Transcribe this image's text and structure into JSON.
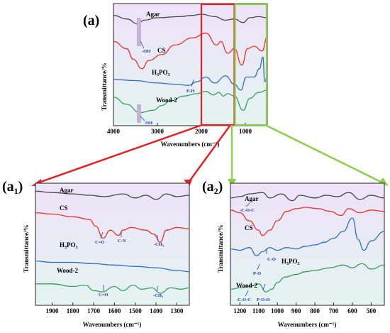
{
  "colors": {
    "agar": "#4a4a4a",
    "cs": "#e8332d",
    "h3po3": "#2e6fc4",
    "wood": "#3aa15a",
    "zoom_red": "#e22226",
    "zoom_green": "#8ccf4a",
    "bg_top": "#efe2f8",
    "bg_bottom": "#e3f4f2",
    "annotation": "#1f3fa8",
    "oh_bar": "#c8b2d8"
  },
  "chart_data": [
    {
      "id": "a",
      "type": "line",
      "panel_label": "(a)",
      "xlabel": "Wavenumbers (cm⁻¹)",
      "ylabel": "Transmittance/%",
      "xlim": [
        4000,
        500
      ],
      "xticks": [
        4000,
        3000,
        2000,
        1000
      ],
      "series": [
        {
          "name": "Agar",
          "label": "Agar",
          "key": "agar",
          "x": [
            4000,
            3700,
            3450,
            3300,
            3000,
            2500,
            2200,
            2000,
            1700,
            1450,
            1250,
            1050,
            900,
            700,
            500
          ],
          "y": [
            9.8,
            9.5,
            9.1,
            9.4,
            9.6,
            9.7,
            9.8,
            9.9,
            9.7,
            9.4,
            9.5,
            9.2,
            9.6,
            9.7,
            9.6
          ]
        },
        {
          "name": "CS",
          "label": "CS",
          "key": "cs",
          "x": [
            4000,
            3700,
            3550,
            3350,
            3200,
            2900,
            2600,
            2200,
            1900,
            1650,
            1560,
            1400,
            1250,
            1080,
            950,
            800,
            620,
            500
          ],
          "y": [
            7.6,
            7.0,
            6.1,
            5.3,
            6.0,
            6.5,
            7.3,
            7.9,
            8.3,
            7.3,
            7.6,
            6.6,
            7.0,
            5.6,
            7.0,
            7.2,
            6.8,
            8.0
          ]
        },
        {
          "name": "H3PO3",
          "label": "H₃PO₃",
          "key": "h3po3",
          "x": [
            4000,
            3500,
            3000,
            2600,
            2300,
            2100,
            1900,
            1700,
            1450,
            1250,
            1100,
            980,
            800,
            680,
            600,
            560,
            500
          ],
          "y": [
            4.4,
            4.3,
            4.1,
            4.0,
            3.9,
            4.2,
            4.6,
            4.1,
            4.7,
            4.0,
            3.5,
            4.6,
            4.6,
            5.3,
            6.3,
            4.2,
            4.7
          ]
        },
        {
          "name": "Wood-2",
          "label": "Wood-2",
          "key": "wood",
          "x": [
            4000,
            3700,
            3400,
            3100,
            2900,
            2700,
            2400,
            2100,
            1900,
            1730,
            1600,
            1500,
            1400,
            1250,
            1050,
            900,
            700,
            500
          ],
          "y": [
            2.9,
            2.3,
            1.6,
            1.8,
            2.2,
            2.6,
            3.0,
            3.2,
            3.4,
            3.1,
            3.3,
            3.0,
            3.2,
            3.0,
            1.8,
            2.8,
            3.3,
            3.5
          ]
        }
      ],
      "annotations": [
        "-OH",
        "P-H",
        "OH"
      ],
      "zoom_boxes": [
        {
          "from": 2000,
          "to": 1250,
          "color": "zoom_red",
          "target": "a1"
        },
        {
          "from": 1250,
          "to": 500,
          "color": "zoom_green",
          "target": "a2"
        }
      ]
    },
    {
      "id": "a1",
      "type": "line",
      "panel_label": "(a",
      "panel_sub": "1",
      "xlabel": "Wavenumbers (cm⁻¹)",
      "ylabel": "Transmittance/%",
      "xlim": [
        1980,
        1240
      ],
      "xticks": [
        1900,
        1800,
        1700,
        1600,
        1500,
        1400,
        1300
      ],
      "series": [
        {
          "name": "Agar",
          "label": "Agar",
          "key": "agar",
          "x": [
            1980,
            1900,
            1800,
            1720,
            1650,
            1560,
            1500,
            1450,
            1400,
            1350,
            1300,
            1240
          ],
          "y": [
            9.8,
            9.7,
            9.6,
            9.5,
            9.4,
            9.6,
            9.3,
            9.5,
            9.2,
            9.6,
            9.4,
            9.5
          ]
        },
        {
          "name": "CS",
          "label": "CS",
          "key": "cs",
          "x": [
            1980,
            1900,
            1800,
            1720,
            1690,
            1655,
            1620,
            1580,
            1560,
            1520,
            1450,
            1410,
            1380,
            1350,
            1300,
            1240
          ],
          "y": [
            8.2,
            8.1,
            7.9,
            7.7,
            7.2,
            6.3,
            6.9,
            6.5,
            6.9,
            7.1,
            6.9,
            6.6,
            6.0,
            6.9,
            7.1,
            7.0
          ]
        },
        {
          "name": "H3PO3",
          "label": "H₃PO₃",
          "key": "h3po3",
          "x": [
            1980,
            1900,
            1800,
            1700,
            1600,
            1500,
            1400,
            1300,
            1240
          ],
          "y": [
            4.6,
            4.5,
            4.5,
            4.4,
            4.3,
            4.2,
            4.1,
            3.9,
            3.8
          ]
        },
        {
          "name": "Wood-2",
          "label": "Wood-2",
          "key": "wood",
          "x": [
            1980,
            1900,
            1800,
            1740,
            1700,
            1660,
            1600,
            1560,
            1510,
            1470,
            1420,
            1380,
            1330,
            1280,
            1240
          ],
          "y": [
            2.9,
            2.9,
            2.7,
            2.8,
            2.4,
            2.3,
            2.7,
            2.4,
            2.8,
            2.5,
            2.6,
            2.2,
            2.6,
            2.5,
            2.6
          ]
        }
      ],
      "annotations": [
        "C=O",
        "C-N",
        "-CH₃",
        "C=O",
        "-CH₃"
      ]
    },
    {
      "id": "a2",
      "type": "line",
      "panel_label": "(a",
      "panel_sub": "2",
      "xlabel": "Wavenumbers (cm⁻¹)",
      "ylabel": "Transmittance/%",
      "xlim": [
        1250,
        430
      ],
      "xticks": [
        1200,
        1100,
        1000,
        900,
        800,
        700,
        600,
        500
      ],
      "series": [
        {
          "name": "Agar",
          "label": "Agar",
          "key": "agar",
          "x": [
            1250,
            1200,
            1150,
            1080,
            1040,
            980,
            920,
            880,
            800,
            740,
            680,
            620,
            560,
            500,
            430
          ],
          "y": [
            9.3,
            9.4,
            9.6,
            9.7,
            9.3,
            9.6,
            9.1,
            9.5,
            9.3,
            9.5,
            9.4,
            9.7,
            9.2,
            9.5,
            9.3
          ]
        },
        {
          "name": "CS",
          "label": "CS",
          "key": "cs",
          "x": [
            1250,
            1200,
            1150,
            1100,
            1080,
            1040,
            1000,
            950,
            900,
            850,
            780,
            720,
            660,
            620,
            560,
            500,
            430
          ],
          "y": [
            8.4,
            8.2,
            7.6,
            6.9,
            6.5,
            6.9,
            7.6,
            8.3,
            8.5,
            8.6,
            8.5,
            8.3,
            8.0,
            8.5,
            8.2,
            8.4,
            8.3
          ]
        },
        {
          "name": "H3PO3",
          "label": "H₃PO₃",
          "key": "h3po3",
          "x": [
            1250,
            1200,
            1150,
            1110,
            1080,
            1040,
            1000,
            950,
            900,
            850,
            800,
            750,
            700,
            650,
            600,
            570,
            540,
            500,
            430
          ],
          "y": [
            5.5,
            5.4,
            5.6,
            5.0,
            5.3,
            5.6,
            5.4,
            5.6,
            5.5,
            5.7,
            5.8,
            6.0,
            6.3,
            6.8,
            7.8,
            6.2,
            5.4,
            6.1,
            6.8
          ]
        },
        {
          "name": "Wood-2",
          "label": "Wood-2",
          "key": "wood",
          "x": [
            1250,
            1200,
            1150,
            1100,
            1060,
            1030,
            1000,
            960,
            900,
            850,
            800,
            720,
            650,
            600,
            550,
            500,
            430
          ],
          "y": [
            2.5,
            2.6,
            2.7,
            2.9,
            2.3,
            2.5,
            3.0,
            3.4,
            3.6,
            3.8,
            3.9,
            4.1,
            4.3,
            4.1,
            4.4,
            4.0,
            4.3
          ]
        }
      ],
      "annotations": [
        "-C-O-C",
        "C-O",
        "P-O",
        "P-O-H",
        "-C-O-C"
      ]
    }
  ]
}
